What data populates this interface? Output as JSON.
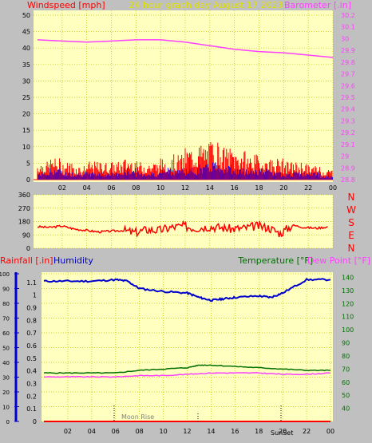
{
  "colors": {
    "plot_bg": "#ffffc0",
    "frame_bg": "#c0c0c0",
    "wind": "#ff0000",
    "gust": "#0000ff",
    "calm": "#008000",
    "barometer": "#ff40ff",
    "direction": "#ff0000",
    "rain": "#ff0000",
    "humidity": "#0000cc",
    "temperature": "#007000",
    "dew_point": "#ff40ff",
    "title": "#e0e000"
  },
  "header": {
    "left": "Windspeed [mph]",
    "center": "24 hour graph day   August 17 2023",
    "right": "Barometer [.in]"
  },
  "compass": [
    "N",
    "W",
    "S",
    "E",
    "N"
  ],
  "bottom_header": {
    "rain": "Rainfall [.in]",
    "humidity": "Humidity",
    "temperature": "Temperature [°F]",
    "dew_point": "Dew Point [°F]"
  },
  "events": {
    "moonrise": "Moon Rise",
    "sunset": "SunSet"
  },
  "x_ticks": [
    "02",
    "04",
    "06",
    "08",
    "10",
    "12",
    "14",
    "16",
    "18",
    "20",
    "22",
    "00"
  ],
  "chart_data": [
    {
      "type": "line",
      "title": "24 hour graph day   August 17 2023",
      "xlabel": "",
      "x_range_hours": [
        0,
        24
      ],
      "left_axis": {
        "label": "Windspeed [mph]",
        "ylim": [
          0,
          50
        ],
        "ticks": [
          "0",
          "5",
          "10",
          "15",
          "20",
          "25",
          "30",
          "35",
          "40",
          "45",
          "50"
        ]
      },
      "right_axis": {
        "label": "Barometer [.in]",
        "ylim": [
          28.8,
          30.2
        ],
        "ticks": [
          "28.8",
          "28.9",
          "29",
          "29.1",
          "29.2",
          "29.3",
          "29.4",
          "29.5",
          "29.6",
          "29.7",
          "29.8",
          "29.9",
          "30",
          "30.1",
          "30.2"
        ]
      },
      "series": [
        {
          "name": "Barometer",
          "axis": "right",
          "x": [
            0,
            2,
            4,
            6,
            8,
            10,
            12,
            14,
            16,
            18,
            20,
            22,
            24
          ],
          "values": [
            29.99,
            29.98,
            29.97,
            29.98,
            29.99,
            29.99,
            29.97,
            29.94,
            29.91,
            29.89,
            29.88,
            29.86,
            29.84
          ]
        },
        {
          "name": "Wind gust",
          "axis": "left",
          "style": "spikes",
          "x": [
            0,
            1,
            2,
            3,
            4,
            5,
            6,
            7,
            8,
            9,
            10,
            11,
            12,
            13,
            14,
            15,
            16,
            17,
            18,
            19,
            20,
            21,
            22,
            23
          ],
          "values": [
            5,
            6,
            5,
            4,
            5,
            5,
            5,
            6,
            5,
            5,
            6,
            7,
            9,
            10,
            11,
            9,
            8,
            7,
            6,
            6,
            5,
            5,
            4,
            3
          ]
        },
        {
          "name": "Wind average",
          "axis": "left",
          "style": "spikes",
          "x": [
            0,
            1,
            2,
            3,
            4,
            5,
            6,
            7,
            8,
            9,
            10,
            11,
            12,
            13,
            14,
            15,
            16,
            17,
            18,
            19,
            20,
            21,
            22,
            23
          ],
          "values": [
            2,
            3,
            2,
            2,
            2,
            2,
            2,
            3,
            2,
            2,
            3,
            3,
            3,
            4,
            5,
            4,
            3,
            3,
            3,
            2,
            2,
            2,
            2,
            1
          ]
        }
      ]
    },
    {
      "type": "line",
      "title": "",
      "xlabel": "",
      "x_range_hours": [
        0,
        24
      ],
      "left_axis": {
        "label": "",
        "ylim": [
          0,
          360
        ],
        "ticks": [
          "0",
          "90",
          "180",
          "270",
          "360"
        ]
      },
      "series": [
        {
          "name": "Wind direction",
          "axis": "left",
          "x": [
            0,
            1,
            2,
            3,
            4,
            5,
            6,
            7,
            8,
            9,
            10,
            11,
            12,
            13,
            14,
            15,
            16,
            17,
            18,
            19,
            20,
            21,
            22,
            23,
            24
          ],
          "values": [
            145,
            140,
            150,
            130,
            120,
            110,
            115,
            120,
            105,
            125,
            120,
            140,
            150,
            135,
            145,
            140,
            130,
            135,
            150,
            140,
            100,
            155,
            140,
            135,
            145
          ]
        }
      ]
    },
    {
      "type": "line",
      "title": "",
      "xlabel": "",
      "x_range_hours": [
        0,
        24
      ],
      "left_axis": {
        "label": "Rainfall [.in]",
        "ylim": [
          0,
          1.2
        ],
        "ticks": [
          "0",
          "0.1",
          "0.2",
          "0.3",
          "0.4",
          "0.5",
          "0.6",
          "0.7",
          "0.8",
          "0.9",
          "1",
          "1.1"
        ]
      },
      "humidity_axis": {
        "label": "Humidity",
        "ylim": [
          0,
          100
        ],
        "ticks": [
          "0",
          "10",
          "20",
          "30",
          "40",
          "50",
          "60",
          "70",
          "80",
          "90",
          "100"
        ]
      },
      "right_axis": {
        "label": "Temperature [°F]",
        "ylim": [
          30,
          150
        ],
        "ticks": [
          "40",
          "50",
          "60",
          "70",
          "80",
          "90",
          "100",
          "110",
          "120",
          "130",
          "140"
        ]
      },
      "series": [
        {
          "name": "Humidity",
          "axis": "humidity",
          "x": [
            0,
            2,
            4,
            6,
            7,
            8,
            10,
            12,
            13,
            14,
            15,
            16,
            18,
            19,
            20,
            22,
            24
          ],
          "values": [
            95,
            95,
            95,
            96,
            95,
            90,
            88,
            87,
            84,
            82,
            83,
            84,
            85,
            84,
            87,
            96,
            96
          ]
        },
        {
          "name": "Temperature",
          "axis": "right",
          "x": [
            0,
            2,
            4,
            6,
            8,
            10,
            12,
            13,
            14,
            16,
            18,
            20,
            22,
            24
          ],
          "values": [
            67,
            67,
            67,
            67,
            69,
            70,
            71,
            73,
            73,
            72,
            71,
            70,
            69,
            69
          ]
        },
        {
          "name": "Dew Point",
          "axis": "right",
          "x": [
            0,
            2,
            4,
            6,
            8,
            10,
            12,
            14,
            16,
            18,
            20,
            22,
            24
          ],
          "values": [
            64,
            64,
            64,
            64,
            65,
            65,
            66,
            67,
            67,
            67,
            66,
            66,
            67
          ]
        },
        {
          "name": "Rainfall",
          "axis": "left",
          "x": [
            0,
            24
          ],
          "values": [
            0,
            0
          ]
        }
      ]
    }
  ]
}
